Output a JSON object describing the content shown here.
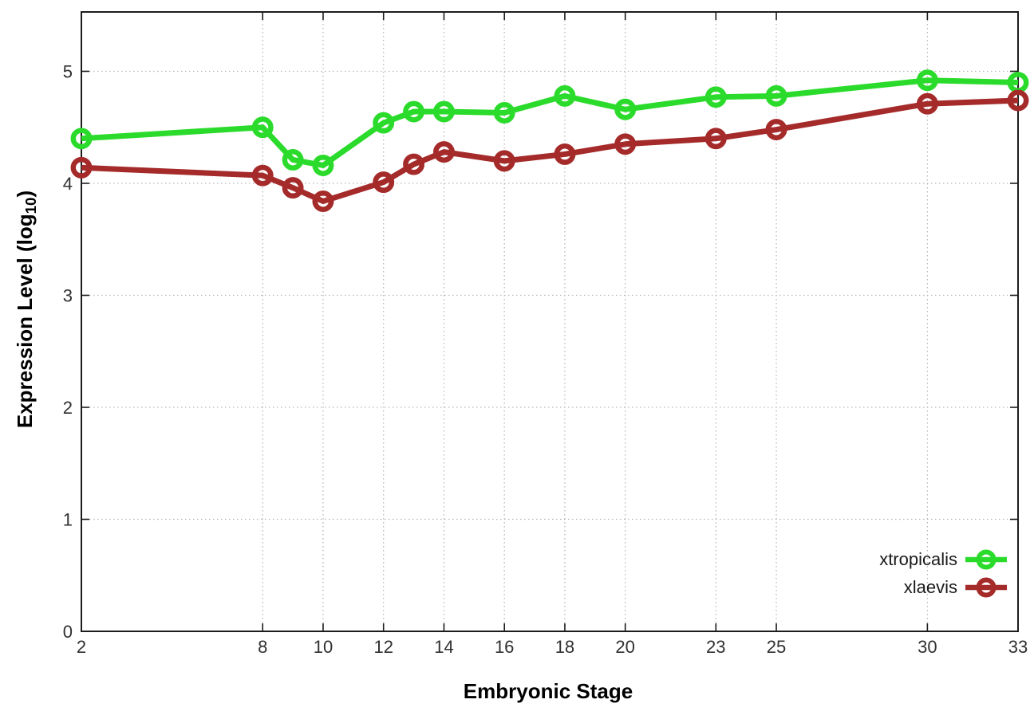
{
  "chart_data": {
    "type": "line",
    "title": "",
    "xlabel": "Embryonic Stage",
    "ylabel": "Expression Level (log10)",
    "ylabel_parts": {
      "prefix": "Expression Level (log",
      "sub": "10",
      "suffix": ")"
    },
    "x_ticks": [
      2,
      8,
      10,
      12,
      14,
      16,
      18,
      20,
      23,
      25,
      30,
      33
    ],
    "y_ticks": [
      0,
      1,
      2,
      3,
      4,
      5
    ],
    "xlim": [
      2,
      33
    ],
    "ylim": [
      0,
      5.53
    ],
    "grid": true,
    "x": [
      2,
      8,
      9,
      10,
      12,
      13,
      14,
      16,
      18,
      20,
      23,
      25,
      30,
      33
    ],
    "series": [
      {
        "name": "xtropicalis",
        "color": "#2bdb2b",
        "values": [
          4.4,
          4.5,
          4.21,
          4.16,
          4.54,
          4.64,
          4.64,
          4.63,
          4.78,
          4.66,
          4.77,
          4.78,
          4.92,
          4.9
        ]
      },
      {
        "name": "xlaevis",
        "color": "#a52a2a",
        "values": [
          4.14,
          4.07,
          3.96,
          3.84,
          4.01,
          4.17,
          4.28,
          4.2,
          4.26,
          4.35,
          4.4,
          4.48,
          4.71,
          4.74
        ]
      }
    ],
    "legend": {
      "position": "inside-bottom-right",
      "items": [
        "xtropicalis",
        "xlaevis"
      ]
    },
    "marker": "open-circle",
    "colors": {
      "background": "#ffffff",
      "grid": "#b8b8b8",
      "axis": "#1c1c1c",
      "tick_label": "#303030"
    }
  }
}
